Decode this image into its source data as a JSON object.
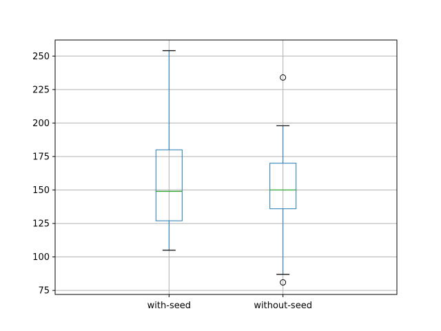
{
  "chart_data": {
    "type": "box",
    "title": "",
    "xlabel": "",
    "ylabel": "",
    "ylim": [
      72,
      262
    ],
    "yticks": [
      75,
      100,
      125,
      150,
      175,
      200,
      225,
      250
    ],
    "grid": true,
    "categories": [
      "with-seed",
      "without-seed"
    ],
    "boxes": [
      {
        "name": "with-seed",
        "whisker_low": 105,
        "q1": 127,
        "median": 149,
        "q3": 180,
        "whisker_high": 254,
        "outliers": []
      },
      {
        "name": "without-seed",
        "whisker_low": 87,
        "q1": 136,
        "median": 150,
        "q3": 170,
        "whisker_high": 198,
        "outliers": [
          81,
          234
        ]
      }
    ],
    "colors": {
      "box": "#1f77b4",
      "median": "#2ca02c",
      "grid": "#b0b0b0",
      "axis": "#000000"
    }
  }
}
